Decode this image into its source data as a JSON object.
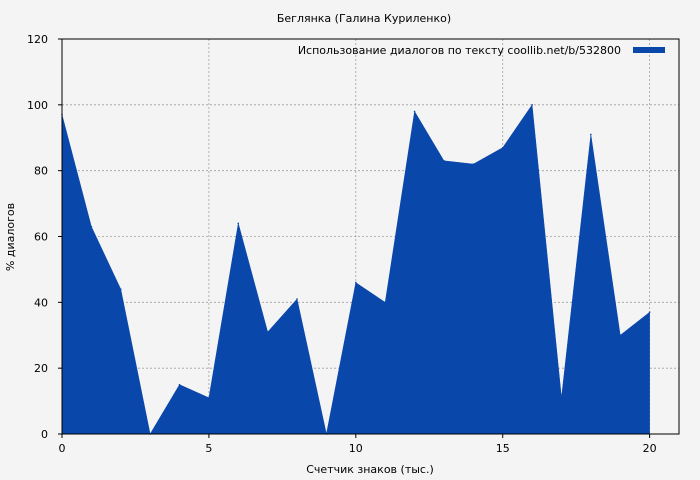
{
  "chart_data": {
    "type": "area",
    "title": "Беглянка (Галина Куриленко)",
    "xlabel": "Счетчик знаков (тыс.)",
    "ylabel": "% диалогов",
    "xlim": [
      0,
      21
    ],
    "ylim": [
      0,
      120
    ],
    "xticks": [
      0,
      5,
      10,
      15,
      20
    ],
    "yticks": [
      0,
      20,
      40,
      60,
      80,
      100,
      120
    ],
    "grid": true,
    "legend_position": "top-right",
    "series": [
      {
        "name": "Использование диалогов по тексту  coollib.net/b/532800",
        "color": "#0a47ab",
        "x": [
          0,
          1,
          2,
          3,
          4,
          5,
          6,
          7,
          8,
          9,
          10,
          11,
          12,
          13,
          14,
          15,
          16,
          17,
          18,
          19,
          20
        ],
        "values": [
          97,
          63,
          44,
          0,
          15,
          11,
          64,
          31,
          41,
          0,
          46,
          40,
          98,
          83,
          82,
          87,
          100,
          11,
          91,
          30,
          37
        ]
      }
    ]
  }
}
